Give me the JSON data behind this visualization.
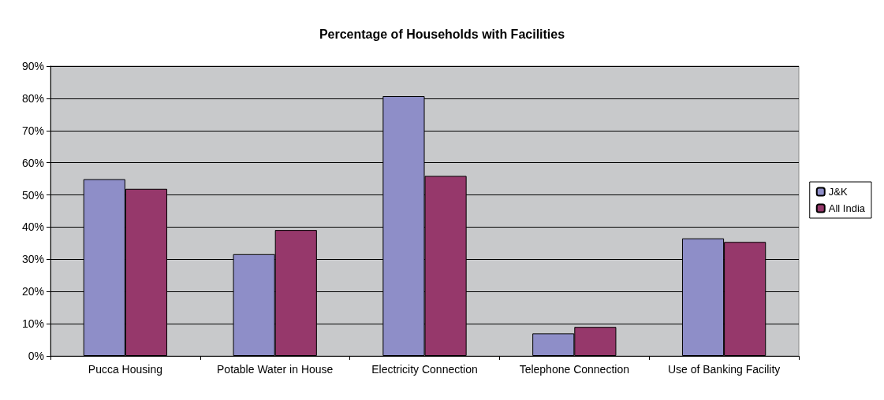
{
  "chart_data": {
    "type": "bar",
    "title": "Percentage of Households with Facilities",
    "categories": [
      "Pucca Housing",
      "Potable Water in House",
      "Electricity Connection",
      "Telephone Connection",
      "Use of Banking Facility"
    ],
    "series": [
      {
        "name": "J&K",
        "color": "#8e8ec8",
        "values": [
          54.9,
          31.6,
          80.7,
          7.0,
          36.5
        ]
      },
      {
        "name": "All India",
        "color": "#96386b",
        "values": [
          51.9,
          39.1,
          55.9,
          9.0,
          35.4
        ]
      }
    ],
    "ylim": [
      0,
      90
    ],
    "yticks": [
      {
        "value": 0,
        "label": "0%"
      },
      {
        "value": 10,
        "label": "10%"
      },
      {
        "value": 20,
        "label": "20%"
      },
      {
        "value": 30,
        "label": "30%"
      },
      {
        "value": 40,
        "label": "40%"
      },
      {
        "value": 50,
        "label": "50%"
      },
      {
        "value": 60,
        "label": "60%"
      },
      {
        "value": 70,
        "label": "70%"
      },
      {
        "value": 80,
        "label": "80%"
      },
      {
        "value": 90,
        "label": "90%"
      }
    ],
    "grid": "y",
    "legend": "right"
  }
}
